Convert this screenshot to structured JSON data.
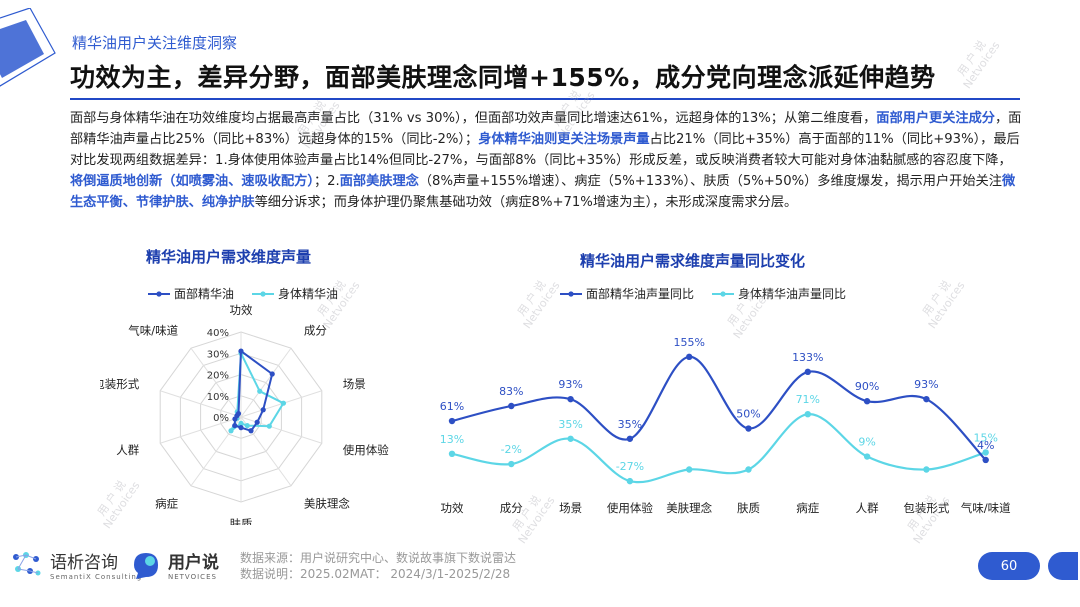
{
  "header": {
    "section_tag": "精华油用户关注维度洞察",
    "headline": "功效为主，差异分野，面部美肤理念同增+155%，成分党向理念派延伸趋势"
  },
  "intro": {
    "p1": "面部与身体精华油在功效维度均占据最高声量占比（31% vs 30%），但面部功效声量同比增速达61%，远超身体的13%；从第二维度看，",
    "h1": "面部用户更关注成分",
    "p2": "，面部精华油声量占比25%（同比+83%）远超身体的15%（同比-2%）；",
    "h2": "身体精华油则更关注场景声量",
    "p3": "占比21%（同比+35%）高于面部的11%（同比+93%），最后对比发现两组数据差异：1.身体使用体验声量占比14%但同比-27%，与面部8%（同比+35%）形成反差，或反映消费者较大可能对身体油黏腻感的容忍度下降，",
    "h3": "将倒逼质地创新（如喷雾油、速吸收配方）",
    "p4": "；2.",
    "h4": "面部美肤理念",
    "p5": "（8%声量+155%增速）、病症（5%+133%）、肤质（5%+50%）多维度爆发，揭示用户开始关注",
    "h5": "微生态平衡、节律护肤、纯净护肤",
    "p6": "等细分诉求；而身体护理仍聚焦基础功效（病症8%+71%增速为主），未形成深度需求分层。"
  },
  "colors": {
    "accent": "#2f5bd0",
    "face": "#2d4fc4",
    "body": "#5cd6e6",
    "title_blue": "#1d3fae"
  },
  "watermark": {
    "line1": "用 户 说",
    "line2": "Netvoices"
  },
  "chart_data": [
    {
      "type": "radar",
      "title": "精华油用户需求维度声量",
      "categories": [
        "功效",
        "成分",
        "场景",
        "使用体验",
        "美肤理念",
        "肤质",
        "病症",
        "人群",
        "包装形式",
        "气味/味道"
      ],
      "ticks": [
        "40%",
        "30%",
        "20%",
        "10%",
        "0%"
      ],
      "rmax": 40,
      "legend_position": "top",
      "series": [
        {
          "name": "面部精华油",
          "values": [
            31,
            25,
            11,
            8,
            8,
            5,
            5,
            3,
            2,
            2
          ]
        },
        {
          "name": "身体精华油",
          "values": [
            30,
            15,
            21,
            14,
            5,
            3,
            8,
            2,
            2,
            3
          ]
        }
      ]
    },
    {
      "type": "line",
      "title": "精华油用户需求维度声量同比变化",
      "categories": [
        "功效",
        "成分",
        "场景",
        "使用体验",
        "美肤理念",
        "肤质",
        "病症",
        "人群",
        "包装形式",
        "气味/味道"
      ],
      "legend_position": "top",
      "ylim": [
        -40,
        165
      ],
      "series": [
        {
          "name": "面部精华油声量同比",
          "values": [
            61,
            83,
            93,
            35,
            155,
            50,
            133,
            90,
            93,
            4
          ],
          "labels": [
            "61%",
            "83%",
            "93%",
            "35%",
            "155%",
            "50%",
            "133%",
            "90%",
            "93%",
            "4%"
          ]
        },
        {
          "name": "身体精华油声量同比",
          "values": [
            13,
            -2,
            35,
            -27,
            -10,
            -10,
            71,
            9,
            -10,
            15
          ],
          "labels": [
            "13%",
            "-2%",
            "35%",
            "-27%",
            "",
            "",
            "71%",
            "9%",
            "",
            "15%"
          ]
        }
      ]
    }
  ],
  "footer": {
    "logo1_main": "语析咨询",
    "logo1_sub": "SemantiX Consulting",
    "logo2_main": "用户说",
    "logo2_sub": "NETVOICES",
    "source_line1": "数据来源：用户说研究中心、数说故事旗下数说雷达",
    "source_line2": "数据说明：2025.02MAT：  2024/3/1-2025/2/28",
    "page_number": "60"
  }
}
